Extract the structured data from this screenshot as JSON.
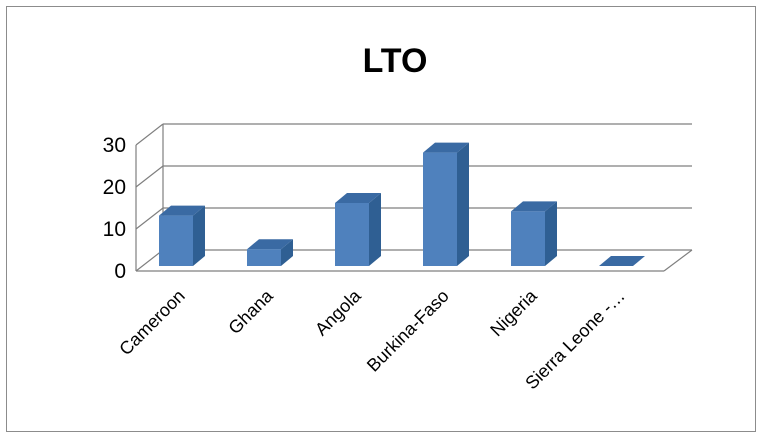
{
  "chart_data": {
    "type": "bar",
    "title": "LTO",
    "categories": [
      "Cameroon",
      "Ghana",
      "Angola",
      "Burkina-Faso",
      "Nigeria",
      "Sierra Leone -…"
    ],
    "values": [
      12,
      4,
      15,
      27,
      13,
      0
    ],
    "ylim": [
      0,
      30
    ],
    "yticks": [
      "0",
      "10",
      "20",
      "30"
    ],
    "grid": true,
    "style": "3d-column",
    "colors": {
      "bar_front": "#4f81bd",
      "bar_side": "#2f5f93",
      "bar_top": "#3a6aa3",
      "grid": "#7f7f7f"
    }
  }
}
